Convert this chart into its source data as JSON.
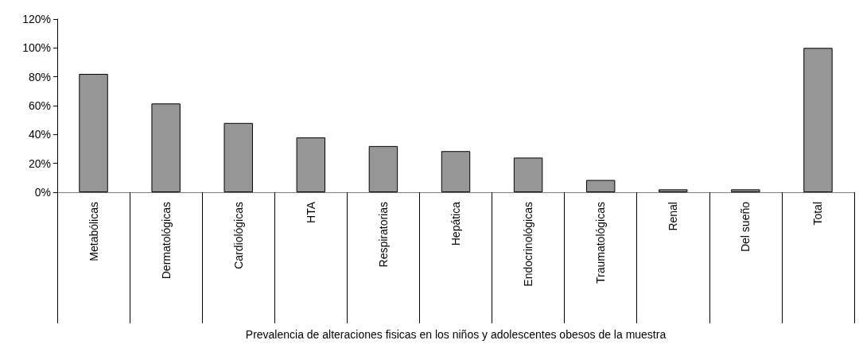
{
  "chart_data": {
    "type": "bar",
    "xlabel": "Prevalencia de alteraciones fisicas en los niños y adolescentes obesos de la muestra",
    "categories": [
      "Metabólicas",
      "Dermatológicas",
      "Cardiológicas",
      "HTA",
      "Respiratorias",
      "Hepática",
      "Endocrinológicas",
      "Traumatológicas",
      "Renal",
      "Del sueño",
      "Total"
    ],
    "values": [
      82,
      61.5,
      48,
      38,
      32,
      28.5,
      24,
      8.5,
      2,
      2,
      100
    ],
    "color": "#969696",
    "ylim": [
      0,
      120
    ],
    "yticks": [
      {
        "value": 0,
        "label": "0%"
      },
      {
        "value": 20,
        "label": "20%"
      },
      {
        "value": 40,
        "label": "40%"
      },
      {
        "value": 60,
        "label": "60%"
      },
      {
        "value": 80,
        "label": "80%"
      },
      {
        "value": 100,
        "label": "100%"
      },
      {
        "value": 120,
        "label": "120%"
      }
    ],
    "grid": false
  }
}
